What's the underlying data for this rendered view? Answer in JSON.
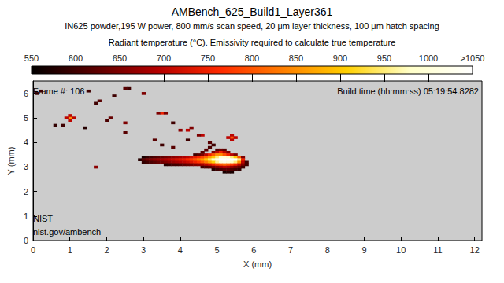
{
  "chart_data": {
    "type": "heatmap",
    "title": "AMBench_625_Build1_Layer361",
    "subtitle": "IN625 powder,195 W power, 800 mm/s scan speed, 20 μm layer thickness, 100 μm hatch spacing",
    "x_label": "X (mm)",
    "y_label": "Y (mm)",
    "annotations": [
      "Frame #: 106",
      "Build time (hh:mm:ss) 05:19:54.8282",
      "NIST",
      "nist.gov/ambench"
    ],
    "xlim": [
      0,
      12.2
    ],
    "xticks": [
      0,
      1,
      2,
      3,
      4,
      5,
      6,
      7,
      8,
      9,
      10,
      11,
      12
    ],
    "ylim": [
      0,
      6.5
    ],
    "yticks": [
      0,
      1,
      2,
      3,
      4,
      5,
      6
    ],
    "colorbar": {
      "title": "Radiant temperature (°C). Emissivity required to calculate true temperature",
      "range": [
        550,
        1050
      ],
      "ticks": [
        550,
        600,
        650,
        700,
        750,
        800,
        850,
        900,
        950,
        1000,
        {
          "value": 1050,
          "label": ">1050"
        }
      ]
    },
    "cell_size": 0.1,
    "cells": [
      [
        5.0,
        3.7,
        620
      ],
      [
        5.1,
        3.7,
        640
      ],
      [
        5.2,
        3.7,
        620
      ],
      [
        4.9,
        3.6,
        650
      ],
      [
        5.0,
        3.6,
        700
      ],
      [
        5.1,
        3.6,
        750
      ],
      [
        5.2,
        3.6,
        700
      ],
      [
        5.3,
        3.6,
        650
      ],
      [
        4.4,
        3.5,
        600
      ],
      [
        4.5,
        3.5,
        620
      ],
      [
        4.6,
        3.5,
        650
      ],
      [
        4.7,
        3.5,
        700
      ],
      [
        4.8,
        3.5,
        750
      ],
      [
        4.9,
        3.5,
        800
      ],
      [
        5.0,
        3.5,
        850
      ],
      [
        5.1,
        3.5,
        850
      ],
      [
        5.2,
        3.5,
        800
      ],
      [
        5.3,
        3.5,
        750
      ],
      [
        5.4,
        3.5,
        700
      ],
      [
        5.5,
        3.5,
        650
      ],
      [
        3.0,
        3.4,
        570
      ],
      [
        3.1,
        3.4,
        590
      ],
      [
        3.2,
        3.4,
        600
      ],
      [
        3.3,
        3.4,
        610
      ],
      [
        3.4,
        3.4,
        620
      ],
      [
        3.5,
        3.4,
        630
      ],
      [
        3.6,
        3.4,
        640
      ],
      [
        3.7,
        3.4,
        650
      ],
      [
        3.8,
        3.4,
        660
      ],
      [
        3.9,
        3.4,
        670
      ],
      [
        4.0,
        3.4,
        680
      ],
      [
        4.1,
        3.4,
        690
      ],
      [
        4.2,
        3.4,
        700
      ],
      [
        4.3,
        3.4,
        720
      ],
      [
        4.4,
        3.4,
        740
      ],
      [
        4.5,
        3.4,
        760
      ],
      [
        4.6,
        3.4,
        790
      ],
      [
        4.7,
        3.4,
        820
      ],
      [
        4.8,
        3.4,
        860
      ],
      [
        4.9,
        3.4,
        900
      ],
      [
        5.0,
        3.4,
        950
      ],
      [
        5.1,
        3.4,
        1000
      ],
      [
        5.2,
        3.4,
        1000
      ],
      [
        5.3,
        3.4,
        980
      ],
      [
        5.4,
        3.4,
        950
      ],
      [
        5.5,
        3.4,
        900
      ],
      [
        5.6,
        3.4,
        800
      ],
      [
        5.7,
        3.4,
        650
      ],
      [
        2.9,
        3.3,
        580
      ],
      [
        3.0,
        3.3,
        620
      ],
      [
        3.1,
        3.3,
        640
      ],
      [
        3.2,
        3.3,
        650
      ],
      [
        3.3,
        3.3,
        660
      ],
      [
        3.4,
        3.3,
        670
      ],
      [
        3.5,
        3.3,
        680
      ],
      [
        3.6,
        3.3,
        690
      ],
      [
        3.7,
        3.3,
        700
      ],
      [
        3.8,
        3.3,
        710
      ],
      [
        3.9,
        3.3,
        720
      ],
      [
        4.0,
        3.3,
        730
      ],
      [
        4.1,
        3.3,
        740
      ],
      [
        4.2,
        3.3,
        760
      ],
      [
        4.3,
        3.3,
        780
      ],
      [
        4.4,
        3.3,
        800
      ],
      [
        4.5,
        3.3,
        830
      ],
      [
        4.6,
        3.3,
        860
      ],
      [
        4.7,
        3.3,
        900
      ],
      [
        4.8,
        3.3,
        940
      ],
      [
        4.9,
        3.3,
        980
      ],
      [
        5.0,
        3.3,
        1020
      ],
      [
        5.1,
        3.3,
        1060
      ],
      [
        5.2,
        3.3,
        1080
      ],
      [
        5.3,
        3.3,
        1100
      ],
      [
        5.4,
        3.3,
        1100
      ],
      [
        5.5,
        3.3,
        1080
      ],
      [
        5.6,
        3.3,
        950
      ],
      [
        5.7,
        3.3,
        750
      ],
      [
        3.0,
        3.2,
        590
      ],
      [
        3.1,
        3.2,
        600
      ],
      [
        3.2,
        3.2,
        610
      ],
      [
        3.3,
        3.2,
        620
      ],
      [
        3.4,
        3.2,
        630
      ],
      [
        3.5,
        3.2,
        640
      ],
      [
        3.6,
        3.2,
        650
      ],
      [
        3.7,
        3.2,
        660
      ],
      [
        3.8,
        3.2,
        670
      ],
      [
        3.9,
        3.2,
        680
      ],
      [
        4.0,
        3.2,
        690
      ],
      [
        4.1,
        3.2,
        700
      ],
      [
        4.2,
        3.2,
        710
      ],
      [
        4.3,
        3.2,
        730
      ],
      [
        4.4,
        3.2,
        750
      ],
      [
        4.5,
        3.2,
        770
      ],
      [
        4.6,
        3.2,
        800
      ],
      [
        4.7,
        3.2,
        830
      ],
      [
        4.8,
        3.2,
        870
      ],
      [
        4.9,
        3.2,
        910
      ],
      [
        5.0,
        3.2,
        960
      ],
      [
        5.1,
        3.2,
        1000
      ],
      [
        5.2,
        3.2,
        1020
      ],
      [
        5.3,
        3.2,
        1000
      ],
      [
        5.4,
        3.2,
        980
      ],
      [
        5.5,
        3.2,
        950
      ],
      [
        5.6,
        3.2,
        850
      ],
      [
        5.7,
        3.2,
        700
      ],
      [
        5.8,
        3.2,
        600
      ],
      [
        3.6,
        3.1,
        580
      ],
      [
        3.7,
        3.1,
        590
      ],
      [
        3.8,
        3.1,
        600
      ],
      [
        3.9,
        3.1,
        600
      ],
      [
        4.0,
        3.1,
        610
      ],
      [
        4.1,
        3.1,
        620
      ],
      [
        4.2,
        3.1,
        630
      ],
      [
        4.3,
        3.1,
        640
      ],
      [
        4.4,
        3.1,
        650
      ],
      [
        4.5,
        3.1,
        660
      ],
      [
        4.6,
        3.1,
        680
      ],
      [
        4.7,
        3.1,
        700
      ],
      [
        4.8,
        3.1,
        720
      ],
      [
        4.9,
        3.1,
        750
      ],
      [
        5.0,
        3.1,
        780
      ],
      [
        5.1,
        3.1,
        800
      ],
      [
        5.2,
        3.1,
        820
      ],
      [
        5.3,
        3.1,
        800
      ],
      [
        5.4,
        3.1,
        780
      ],
      [
        5.5,
        3.1,
        750
      ],
      [
        5.6,
        3.1,
        700
      ],
      [
        5.7,
        3.1,
        650
      ],
      [
        5.8,
        3.1,
        600
      ],
      [
        4.6,
        3.0,
        600
      ],
      [
        4.7,
        3.0,
        610
      ],
      [
        4.8,
        3.0,
        620
      ],
      [
        4.9,
        3.0,
        640
      ],
      [
        5.0,
        3.0,
        660
      ],
      [
        5.1,
        3.0,
        680
      ],
      [
        5.2,
        3.0,
        700
      ],
      [
        5.3,
        3.0,
        690
      ],
      [
        5.4,
        3.0,
        670
      ],
      [
        5.5,
        3.0,
        650
      ],
      [
        5.6,
        3.0,
        630
      ],
      [
        5.7,
        3.0,
        600
      ],
      [
        4.9,
        2.9,
        580
      ],
      [
        5.0,
        2.9,
        600
      ],
      [
        5.1,
        2.9,
        610
      ],
      [
        5.2,
        2.9,
        620
      ],
      [
        5.3,
        2.9,
        620
      ],
      [
        5.4,
        2.9,
        610
      ],
      [
        5.5,
        2.9,
        600
      ],
      [
        5.6,
        2.9,
        590
      ],
      [
        5.2,
        2.8,
        570
      ],
      [
        5.3,
        2.8,
        580
      ],
      [
        5.4,
        2.8,
        570
      ],
      [
        4.6,
        3.6,
        620
      ],
      [
        4.7,
        3.7,
        620
      ],
      [
        4.8,
        3.8,
        610
      ],
      [
        4.9,
        3.9,
        600
      ],
      [
        5.4,
        4.2,
        800
      ],
      [
        5.3,
        4.2,
        700
      ],
      [
        5.5,
        4.2,
        700
      ],
      [
        5.4,
        4.3,
        700
      ],
      [
        5.4,
        4.1,
        700
      ],
      [
        1.0,
        5.0,
        850
      ],
      [
        0.9,
        5.0,
        700
      ],
      [
        1.1,
        5.0,
        700
      ],
      [
        1.0,
        5.1,
        700
      ],
      [
        1.0,
        4.9,
        700
      ],
      [
        3.5,
        5.2,
        750
      ],
      [
        3.4,
        5.2,
        650
      ],
      [
        3.6,
        5.2,
        650
      ],
      [
        3.0,
        6.0,
        650
      ],
      [
        2.5,
        6.2,
        620
      ],
      [
        2.6,
        6.2,
        600
      ],
      [
        0.2,
        6.1,
        600
      ],
      [
        0.1,
        6.0,
        590
      ],
      [
        1.7,
        5.6,
        600
      ],
      [
        1.8,
        5.7,
        620
      ],
      [
        1.5,
        6.1,
        600
      ],
      [
        2.2,
        5.9,
        600
      ],
      [
        2.1,
        5.0,
        630
      ],
      [
        2.0,
        4.9,
        610
      ],
      [
        2.5,
        4.8,
        650
      ],
      [
        2.5,
        4.4,
        620
      ],
      [
        3.8,
        4.8,
        600
      ],
      [
        4.0,
        4.5,
        660
      ],
      [
        4.2,
        4.5,
        700
      ],
      [
        4.3,
        4.6,
        650
      ],
      [
        3.3,
        4.1,
        620
      ],
      [
        3.5,
        3.9,
        600
      ],
      [
        4.6,
        4.3,
        700
      ],
      [
        4.5,
        4.3,
        650
      ],
      [
        3.8,
        3.8,
        620
      ],
      [
        1.7,
        3.0,
        660
      ],
      [
        0.8,
        4.7,
        600
      ],
      [
        1.4,
        4.6,
        580
      ],
      [
        0.6,
        4.7,
        590
      ],
      [
        4.2,
        4.1,
        600
      ],
      [
        4.8,
        4.0,
        620
      ]
    ]
  }
}
